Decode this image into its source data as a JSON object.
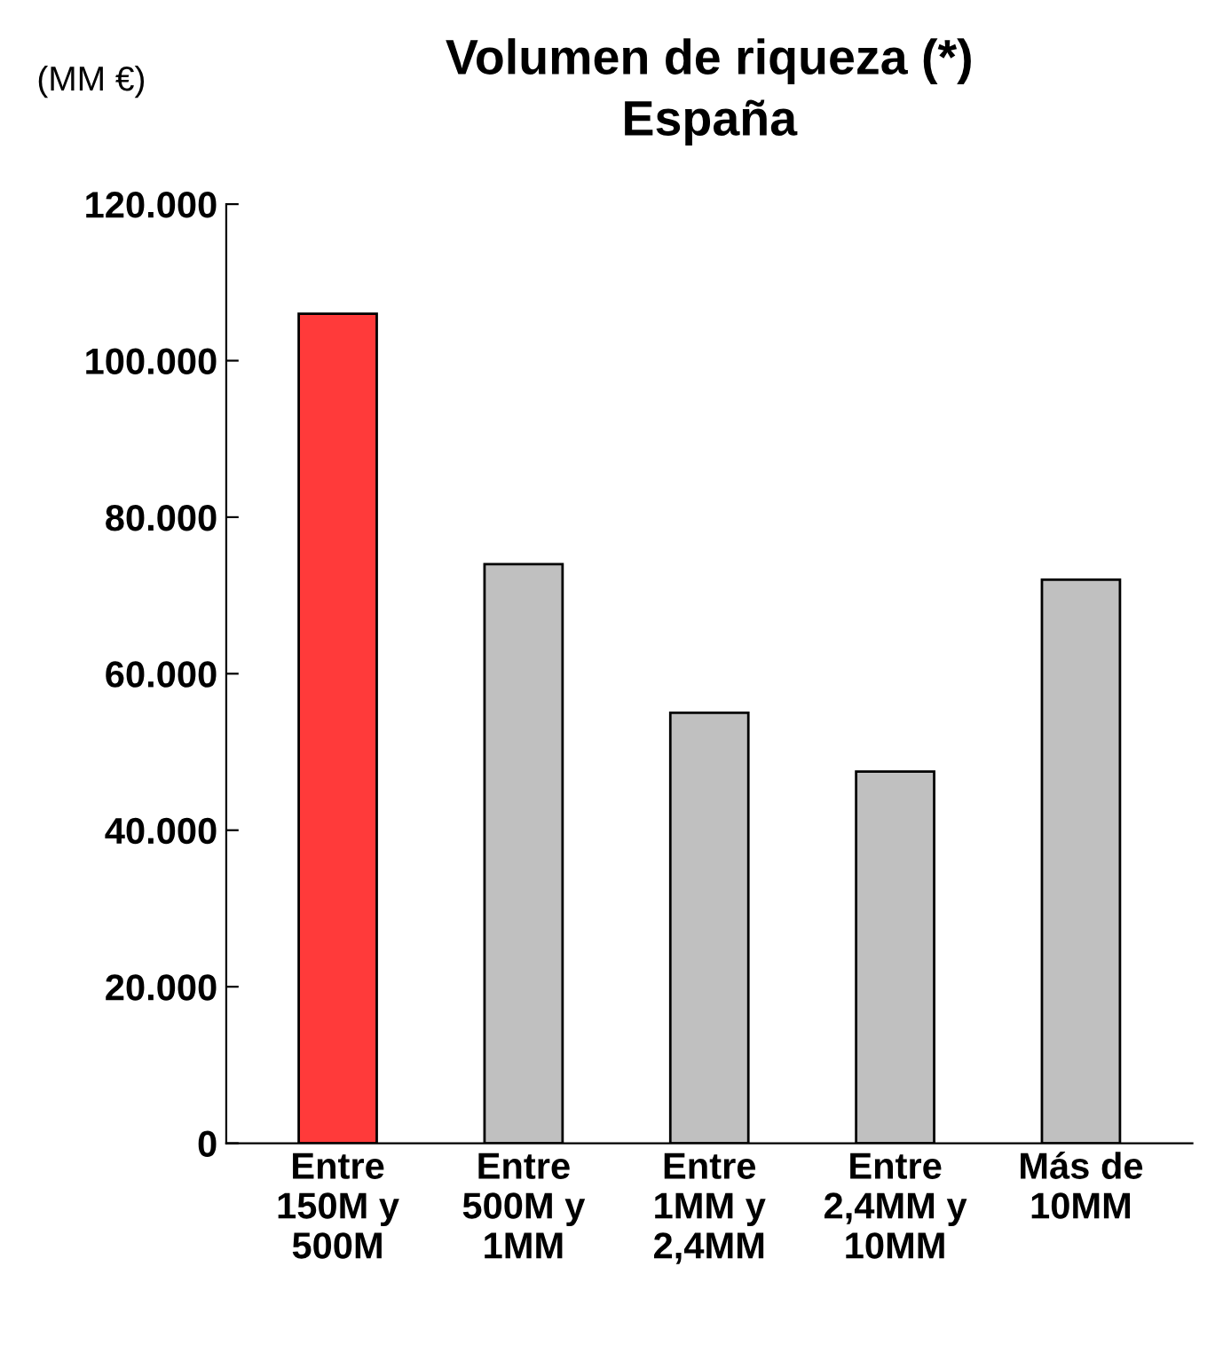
{
  "chart_data": {
    "type": "bar",
    "title": "Volumen de riqueza (*)",
    "subtitle": "España",
    "ylabel": "(MM €)",
    "categories": [
      "Entre\n150M y\n500M",
      "Entre\n500M y\n1MM",
      "Entre\n1MM y\n2,4MM",
      "Entre\n2,4MM y\n10MM",
      "Más de\n10MM"
    ],
    "values": [
      106000,
      74000,
      55000,
      47500,
      72000
    ],
    "colors": [
      "#ff3a3a",
      "#c0c0c0",
      "#c0c0c0",
      "#c0c0c0",
      "#c0c0c0"
    ],
    "ylim": [
      0,
      120000
    ],
    "yticks": [
      0,
      {
        "value": 20000,
        "label": "20.000"
      },
      {
        "value": 40000,
        "label": "40.000"
      },
      {
        "value": 60000,
        "label": "60.000"
      },
      {
        "value": 80000,
        "label": "80.000"
      },
      {
        "value": 100000,
        "label": "100.000"
      },
      {
        "value": 120000,
        "label": "120.000"
      }
    ],
    "grid": false,
    "legend": false
  }
}
